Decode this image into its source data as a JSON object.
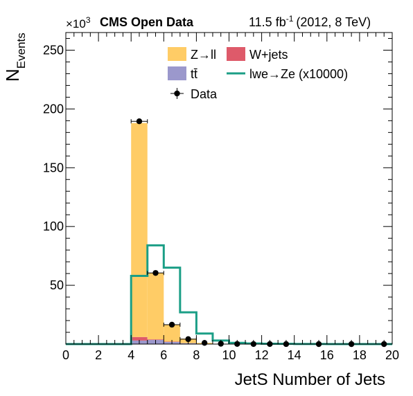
{
  "chart_data": {
    "type": "bar",
    "header": {
      "experiment": "CMS Open Data",
      "lumi": "11.5 fb",
      "lumi_exponent": "-1",
      "energy": "(2012, 8 TeV)"
    },
    "xlabel": "JetS Number of Jets",
    "ylabel_main": "N",
    "ylabel_sub": "Events",
    "y_multiplier": "×10",
    "y_multiplier_exp": "3",
    "xlim": [
      0,
      20
    ],
    "ylim": [
      0,
      265
    ],
    "x_ticks": [
      "0",
      "2",
      "4",
      "6",
      "8",
      "10",
      "12",
      "14",
      "16",
      "18",
      "20"
    ],
    "y_ticks": [
      "50",
      "100",
      "150",
      "200",
      "250"
    ],
    "bin_edges": [
      0,
      1,
      2,
      3,
      4,
      5,
      6,
      7,
      8,
      9,
      10,
      11,
      12,
      13,
      14,
      15,
      16,
      17,
      18,
      19,
      20
    ],
    "stack": [
      {
        "name": "tt̄",
        "color": "#9b98cc",
        "values": [
          0,
          0,
          0,
          0,
          3.0,
          3.5,
          2.0,
          0.8,
          0.2,
          0.05,
          0,
          0,
          0,
          0,
          0,
          0,
          0,
          0,
          0,
          0
        ]
      },
      {
        "name": "W+jets",
        "color": "#de5a6a",
        "values": [
          0,
          0,
          0,
          0,
          3.0,
          0.5,
          0.1,
          0,
          0,
          0,
          0,
          0,
          0,
          0,
          0,
          0,
          0,
          0,
          0,
          0
        ]
      },
      {
        "name": "Z→ll",
        "color": "#ffcc66",
        "values": [
          0,
          0,
          0,
          0,
          182,
          56.5,
          14.5,
          3.8,
          0.8,
          0.15,
          0.05,
          0,
          0,
          0,
          0,
          0,
          0,
          0,
          0,
          0
        ]
      }
    ],
    "signal": {
      "name": "lwe→Ze (x10000)",
      "color": "#1b9e86",
      "values": [
        0,
        0,
        0,
        0,
        58,
        84,
        65,
        27,
        9,
        3,
        1,
        0.5,
        0.3,
        0.2,
        0.1,
        0.05,
        0,
        0,
        0,
        0
      ]
    },
    "data_points": {
      "name": "Data",
      "x": [
        4.5,
        5.5,
        6.5,
        7.5,
        8.5,
        9.5,
        10.5,
        11.5,
        12.5,
        13.5,
        15.5,
        17.5,
        19.5
      ],
      "y": [
        189.5,
        60.5,
        16.5,
        4.2,
        1.0,
        0.3,
        0.1,
        0.05,
        0.02,
        0.01,
        0.0,
        0.0,
        0.0
      ],
      "xerr": [
        0.5,
        0.5,
        0.5,
        0.5,
        0,
        0,
        0,
        0,
        0,
        0,
        0,
        0,
        0
      ]
    },
    "legend": [
      {
        "label": "Z→ll",
        "kind": "fill",
        "color": "#ffcc66"
      },
      {
        "label": "W+jets",
        "kind": "fill",
        "color": "#de5a6a"
      },
      {
        "label": "tt̄",
        "kind": "fill",
        "color": "#9b98cc"
      },
      {
        "label": "lwe→Ze (x10000)",
        "kind": "line",
        "color": "#1b9e86"
      },
      {
        "label": "Data",
        "kind": "marker",
        "color": "#000000"
      }
    ],
    "legend_position": "top-center",
    "grid": false
  }
}
